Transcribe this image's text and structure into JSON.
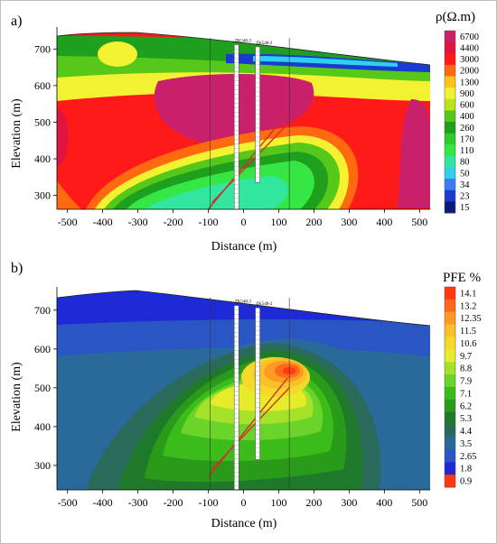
{
  "colors": {
    "resistivity": [
      "#0a1a7a",
      "#1a3ad0",
      "#3c7bf0",
      "#2fd0f0",
      "#33e6a0",
      "#36e644",
      "#2ecc2a",
      "#1ea01e",
      "#56c81a",
      "#b8e61a",
      "#f2f233",
      "#ffc21a",
      "#ff6a10",
      "#ff1a1a",
      "#e01440",
      "#c8206a"
    ],
    "pfe": [
      "#1e2ad6",
      "#2a56c4",
      "#2a6a9a",
      "#2a6a5a",
      "#1e7a2a",
      "#2a9a1a",
      "#3cbc1a",
      "#6ad42a",
      "#a6e22a",
      "#e6ec2a",
      "#f6d82a",
      "#fbbf2a",
      "#fd9a22",
      "#ff6a1a",
      "#ff3a10"
    ]
  },
  "chart_data": [
    {
      "panel": "a)",
      "type": "heatmap",
      "colorbar_title": "ρ(Ω.m)",
      "colorbar_ticks": [
        "6700",
        "4400",
        "3000",
        "2000",
        "1300",
        "900",
        "600",
        "400",
        "260",
        "170",
        "110",
        "80",
        "50",
        "34",
        "23",
        "15"
      ],
      "xlabel": "Distance (m)",
      "ylabel": "Elevation (m)",
      "xlim": [
        -530,
        530
      ],
      "ylim": [
        262,
        760
      ],
      "xticks": [
        -500,
        -400,
        -300,
        -200,
        -100,
        0,
        100,
        200,
        300,
        400,
        500
      ],
      "yticks": [
        300,
        400,
        500,
        600,
        700
      ],
      "boreholes": [
        {
          "label": "ZK548-3",
          "x": -20,
          "top": 712,
          "bottom": 262
        },
        {
          "label": "ZK548-2",
          "x": 40,
          "top": 706,
          "bottom": 335
        }
      ],
      "faults": [
        {
          "x1": -100,
          "y1": 262,
          "x2": 125,
          "y2": 525
        },
        {
          "x1": -90,
          "y1": 280,
          "x2": 130,
          "y2": 500
        }
      ]
    },
    {
      "panel": "b)",
      "type": "heatmap",
      "colorbar_title": "PFE %",
      "colorbar_ticks": [
        "14.1",
        "13.2",
        "12.35",
        "11.5",
        "10.6",
        "9.7",
        "8.8",
        "7.9",
        "7.1",
        "6.2",
        "5.3",
        "4.4",
        "3.5",
        "2.65",
        "1.8",
        "0.9"
      ],
      "xlabel": "Distance (m)",
      "ylabel": "Elevation (m)",
      "xlim": [
        -530,
        530
      ],
      "ylim": [
        237,
        760
      ],
      "xticks": [
        -500,
        -400,
        -300,
        -200,
        -100,
        0,
        100,
        200,
        300,
        400,
        500
      ],
      "yticks": [
        300,
        400,
        500,
        600,
        700
      ],
      "boreholes": [
        {
          "label": "ZK548-3",
          "x": -20,
          "top": 712,
          "bottom": 237
        },
        {
          "label": "ZK548-2",
          "x": 40,
          "top": 706,
          "bottom": 315
        }
      ],
      "faults": [
        {
          "x1": -100,
          "y1": 270,
          "x2": 125,
          "y2": 525
        },
        {
          "x1": -90,
          "y1": 290,
          "x2": 130,
          "y2": 500
        }
      ]
    }
  ]
}
